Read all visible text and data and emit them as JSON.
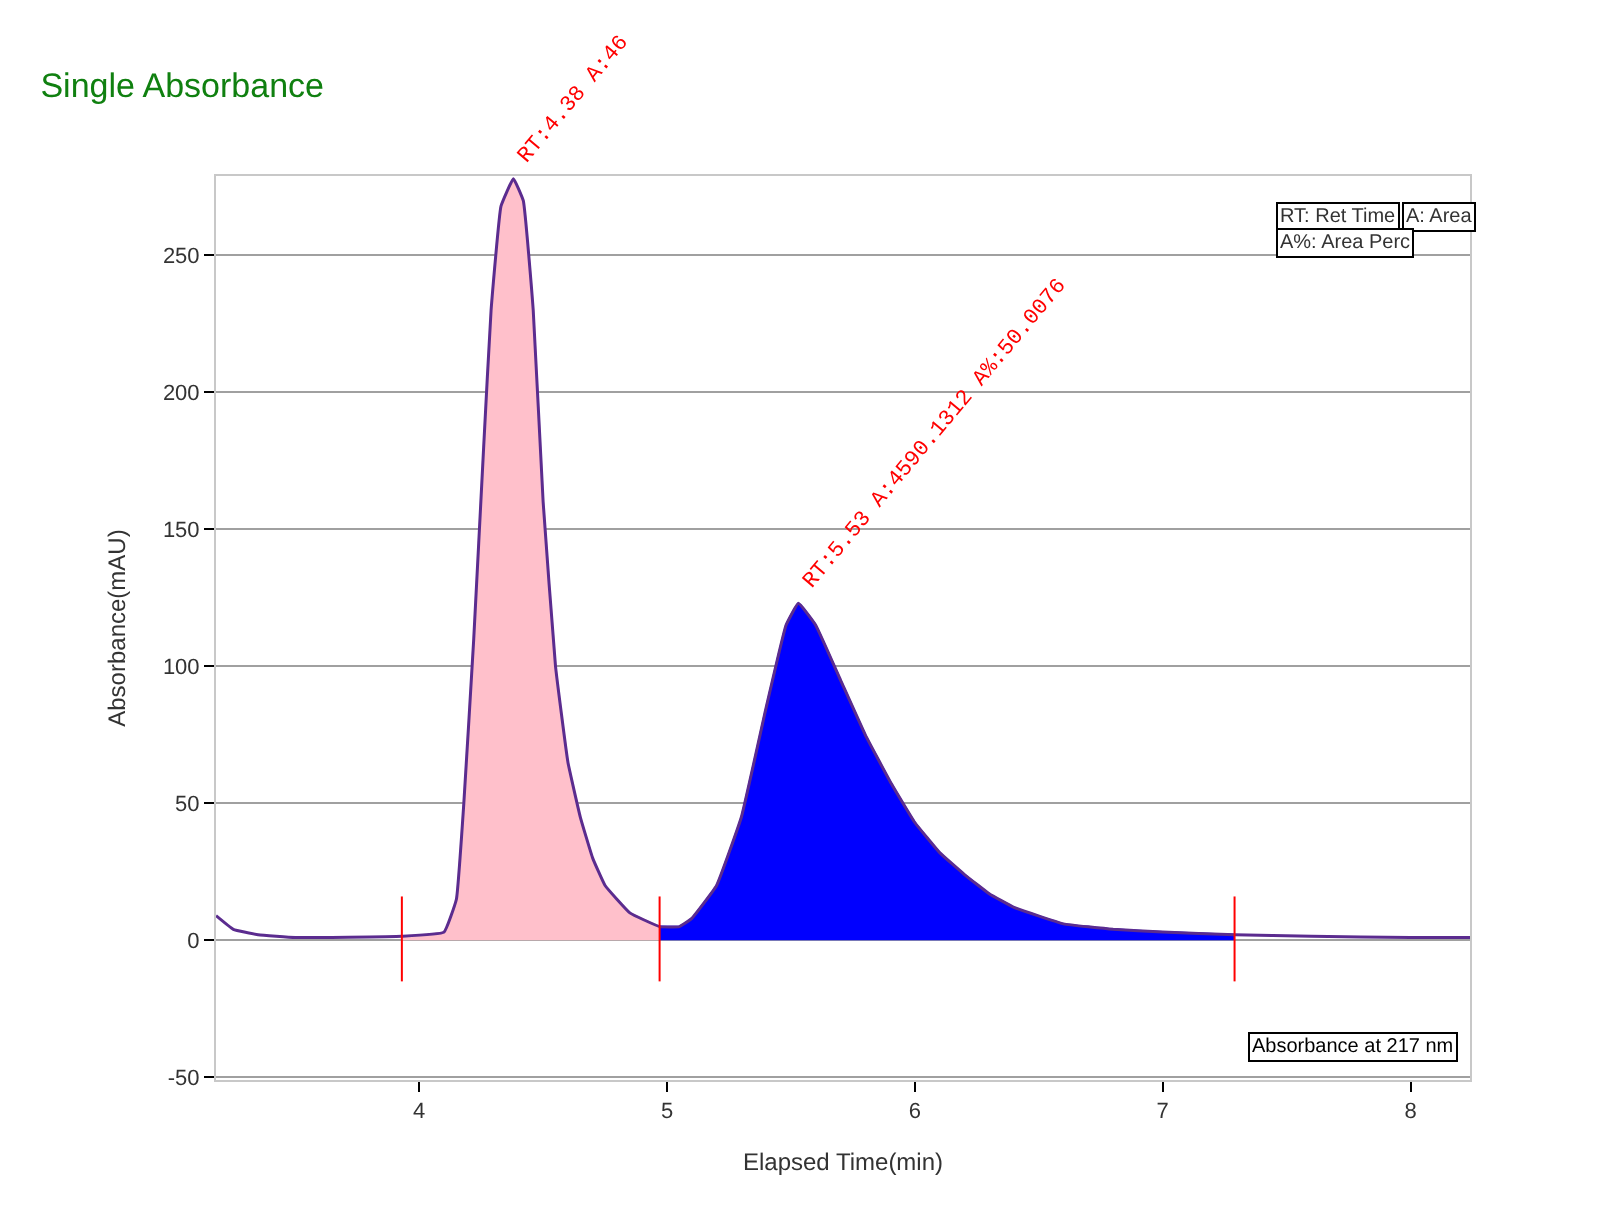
{
  "chart_data": {
    "type": "area",
    "title": "Single Absorbance",
    "xlabel": "Elapsed Time(min)",
    "ylabel": "Absorbance(mAU)",
    "series": [
      {
        "color": "#ffc0cb",
        "x": [
          3.93,
          4.1,
          4.15,
          4.18,
          4.22,
          4.26,
          4.29,
          4.33,
          4.38,
          4.42,
          4.46,
          4.5,
          4.55,
          4.6,
          4.65,
          4.7,
          4.75,
          4.85,
          4.97
        ],
        "values": [
          1.5,
          3,
          15,
          50,
          110,
          180,
          230,
          268,
          278,
          270,
          230,
          160,
          100,
          65,
          45,
          30,
          20,
          10,
          5
        ]
      },
      {
        "color": "#0000ff",
        "x": [
          4.97,
          5.05,
          5.1,
          5.2,
          5.3,
          5.4,
          5.48,
          5.53,
          5.6,
          5.7,
          5.8,
          5.9,
          6.0,
          6.1,
          6.2,
          6.3,
          6.4,
          6.6,
          6.8,
          7.0,
          7.29
        ],
        "values": [
          5,
          5,
          8,
          20,
          45,
          85,
          115,
          123,
          115,
          95,
          75,
          58,
          43,
          32,
          24,
          17,
          12,
          6,
          4,
          3,
          2
        ]
      },
      {
        "type": "line",
        "color": "#5b2c8f",
        "x": [
          3.18,
          3.25,
          3.35,
          3.5,
          3.93,
          4.1,
          4.15,
          4.18,
          4.22,
          4.26,
          4.29,
          4.33,
          4.38,
          4.42,
          4.46,
          4.5,
          4.55,
          4.6,
          4.65,
          4.7,
          4.75,
          4.85,
          4.97,
          5.05,
          5.1,
          5.2,
          5.3,
          5.4,
          5.48,
          5.53,
          5.6,
          5.7,
          5.8,
          5.9,
          6.0,
          6.1,
          6.2,
          6.3,
          6.4,
          6.6,
          6.8,
          7.0,
          7.29,
          7.6,
          8.0,
          8.24
        ],
        "values": [
          9,
          4,
          2,
          1,
          1.5,
          3,
          15,
          50,
          110,
          180,
          230,
          268,
          278,
          270,
          230,
          160,
          100,
          65,
          45,
          30,
          20,
          10,
          5,
          5,
          8,
          20,
          45,
          85,
          115,
          123,
          115,
          95,
          75,
          58,
          43,
          32,
          24,
          17,
          12,
          6,
          4,
          3,
          2,
          1.5,
          1,
          1
        ]
      }
    ],
    "xlim": [
      3.18,
      8.24
    ],
    "xticks": [
      4,
      5,
      6,
      7,
      8
    ],
    "ylim": [
      -51,
      279
    ],
    "yticks": [
      -50,
      0,
      50,
      100,
      150,
      200,
      250
    ],
    "grid": "y",
    "line_style": "solid",
    "marker": "none",
    "ref_lines": [
      {
        "axis": "x",
        "value": 3.93,
        "color": "#ff0000"
      },
      {
        "axis": "x",
        "value": 4.97,
        "color": "#ff0000"
      },
      {
        "axis": "x",
        "value": 7.29,
        "color": "#ff0000"
      }
    ],
    "annotations": [
      {
        "text": "RT:4.38 A:46",
        "x": 4.38,
        "y": 278
      },
      {
        "text": "RT:5.53 A:4590.1312 A%:50.0076",
        "x": 5.53,
        "y": 123
      },
      "RT: Ret Time",
      "A: Area",
      "A%: Area Perc",
      "Absorbance at 217 nm"
    ]
  }
}
